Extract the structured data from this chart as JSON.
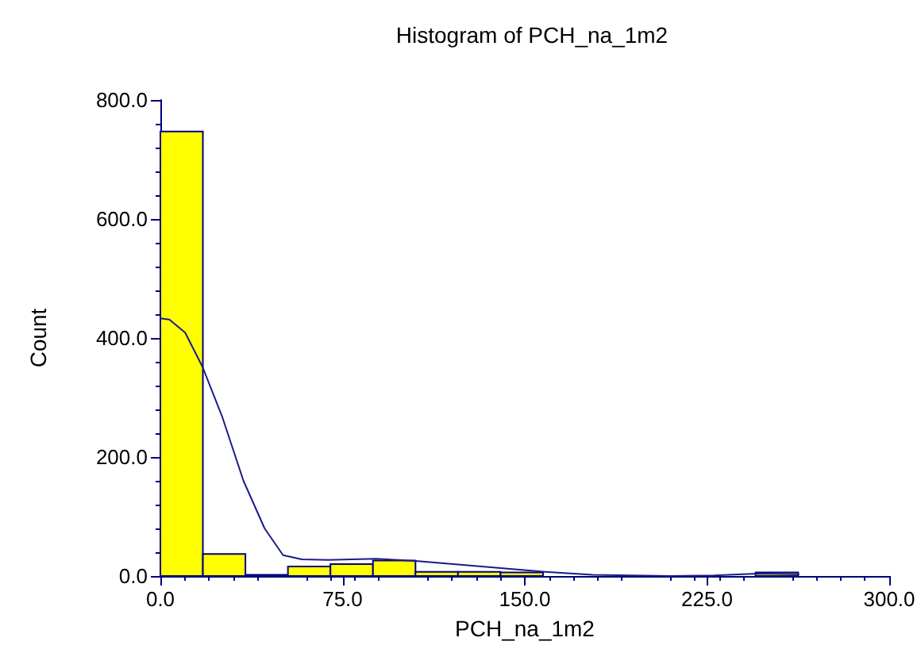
{
  "chart_data": {
    "type": "histogram",
    "title": "Histogram of PCH_na_1m2",
    "xlabel": "PCH_na_1m2",
    "ylabel": "Count",
    "bins": [
      0,
      17.5,
      35,
      52.5,
      70,
      87.5,
      105,
      122.5,
      140,
      157.5,
      175,
      192.5,
      210,
      227.5,
      245,
      262.5
    ],
    "values": [
      747,
      37,
      2,
      16,
      20,
      26,
      7,
      7,
      6,
      0,
      0,
      0,
      0,
      0,
      6
    ],
    "color": "#ffff00",
    "series": [
      {
        "type": "line",
        "color": "#1a1a8c",
        "x": [
          0,
          3.7,
          10.2,
          17.4,
          25.5,
          34.2,
          42.9,
          50.5,
          58.2,
          69,
          88.7,
          106,
          123.5,
          141,
          158.4,
          178,
          210,
          228,
          245.5,
          263
        ],
        "values": [
          433,
          431,
          409,
          351,
          267,
          160,
          80,
          35,
          28,
          27,
          29,
          25,
          19,
          13,
          7,
          2,
          0,
          1,
          4,
          3
        ]
      }
    ],
    "xlim": [
      0,
      300
    ],
    "xticks": [
      {
        "value": 0,
        "label": "0.0"
      },
      {
        "value": 75,
        "label": "75.0"
      },
      {
        "value": 150,
        "label": "150.0"
      },
      {
        "value": 225,
        "label": "225.0"
      },
      {
        "value": 300,
        "label": "300.0"
      }
    ],
    "ylim": [
      0,
      800
    ],
    "yticks": [
      {
        "value": 0,
        "label": "0.0"
      },
      {
        "value": 200,
        "label": "200.0"
      },
      {
        "value": 400,
        "label": "400.0"
      },
      {
        "value": 600,
        "label": "600.0"
      },
      {
        "value": 800,
        "label": "800.0"
      }
    ],
    "grid": false
  }
}
